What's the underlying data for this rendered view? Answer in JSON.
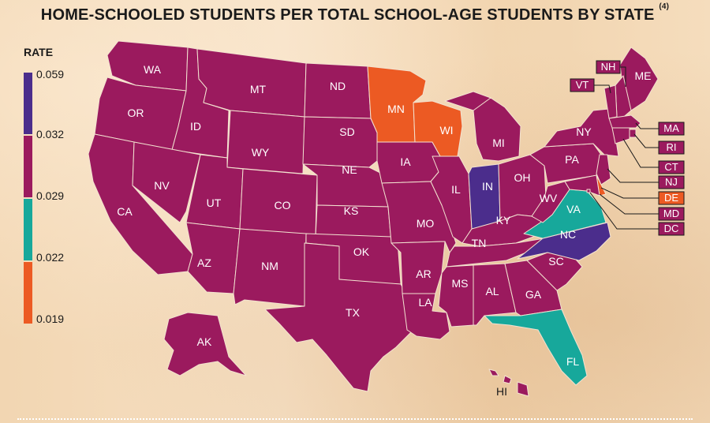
{
  "title": "HOME-SCHOOLED STUDENTS PER TOTAL SCHOOL-AGE STUDENTS BY STATE",
  "title_note": "(4)",
  "legend": {
    "title": "RATE",
    "stops": [
      {
        "label": "0.059",
        "color": "#4b2d8c"
      },
      {
        "label": "0.032",
        "color": "#9b1a5e"
      },
      {
        "label": "0.029",
        "color": "#17a89b"
      },
      {
        "label": "0.022",
        "color": "#ec5a23"
      },
      {
        "label": "0.019",
        "color": ""
      }
    ]
  },
  "colors": {
    "purple": "#4b2d8c",
    "magenta": "#9b1a5e",
    "teal": "#17a89b",
    "orange": "#ec5a23"
  },
  "states": [
    {
      "code": "WA",
      "color": "magenta"
    },
    {
      "code": "OR",
      "color": "magenta"
    },
    {
      "code": "CA",
      "color": "magenta"
    },
    {
      "code": "ID",
      "color": "magenta"
    },
    {
      "code": "NV",
      "color": "magenta"
    },
    {
      "code": "MT",
      "color": "magenta"
    },
    {
      "code": "WY",
      "color": "magenta"
    },
    {
      "code": "UT",
      "color": "magenta"
    },
    {
      "code": "AZ",
      "color": "magenta"
    },
    {
      "code": "CO",
      "color": "magenta"
    },
    {
      "code": "NM",
      "color": "magenta"
    },
    {
      "code": "ND",
      "color": "magenta"
    },
    {
      "code": "SD",
      "color": "magenta"
    },
    {
      "code": "NE",
      "color": "magenta"
    },
    {
      "code": "KS",
      "color": "magenta"
    },
    {
      "code": "OK",
      "color": "magenta"
    },
    {
      "code": "TX",
      "color": "magenta"
    },
    {
      "code": "MN",
      "color": "orange"
    },
    {
      "code": "IA",
      "color": "magenta"
    },
    {
      "code": "MO",
      "color": "magenta"
    },
    {
      "code": "AR",
      "color": "magenta"
    },
    {
      "code": "LA",
      "color": "magenta"
    },
    {
      "code": "WI",
      "color": "orange"
    },
    {
      "code": "IL",
      "color": "magenta"
    },
    {
      "code": "MI",
      "color": "magenta"
    },
    {
      "code": "IN",
      "color": "purple"
    },
    {
      "code": "OH",
      "color": "magenta"
    },
    {
      "code": "KY",
      "color": "magenta"
    },
    {
      "code": "TN",
      "color": "magenta"
    },
    {
      "code": "MS",
      "color": "magenta"
    },
    {
      "code": "AL",
      "color": "magenta"
    },
    {
      "code": "GA",
      "color": "magenta"
    },
    {
      "code": "FL",
      "color": "teal"
    },
    {
      "code": "SC",
      "color": "magenta"
    },
    {
      "code": "NC",
      "color": "purple"
    },
    {
      "code": "VA",
      "color": "teal"
    },
    {
      "code": "WV",
      "color": "magenta"
    },
    {
      "code": "PA",
      "color": "magenta"
    },
    {
      "code": "NY",
      "color": "magenta"
    },
    {
      "code": "ME",
      "color": "magenta"
    },
    {
      "code": "AK",
      "color": "magenta"
    },
    {
      "code": "HI",
      "color": "magenta"
    },
    {
      "code": "NH",
      "color": "magenta"
    },
    {
      "code": "VT",
      "color": "magenta"
    },
    {
      "code": "MA",
      "color": "magenta"
    },
    {
      "code": "RI",
      "color": "magenta"
    },
    {
      "code": "CT",
      "color": "magenta"
    },
    {
      "code": "NJ",
      "color": "magenta"
    },
    {
      "code": "DE",
      "color": "orange"
    },
    {
      "code": "MD",
      "color": "magenta"
    },
    {
      "code": "DC",
      "color": "magenta"
    }
  ]
}
